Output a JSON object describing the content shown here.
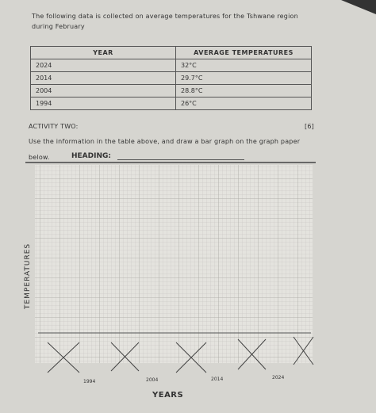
{
  "intro": "The following data is collected on average temperatures for the Tshwane region during February",
  "table": {
    "headers": [
      "YEAR",
      "AVERAGE TEMPERATURES"
    ],
    "rows": [
      [
        "2024",
        "32°C"
      ],
      [
        "2014",
        "29.7°C"
      ],
      [
        "2004",
        "28.8°C"
      ],
      [
        "1994",
        "26°C"
      ]
    ]
  },
  "activity": {
    "title": "ACTIVITY TWO:",
    "marks": "[6]",
    "instruction": "Use the information in the table above, and draw a bar graph on the graph paper below.",
    "heading_label": "HEADING:"
  },
  "graph": {
    "y_label": "TEMPERATURES",
    "x_label": "YEARS",
    "x_labels": [
      "1994",
      "2004",
      "2014",
      "2024"
    ]
  }
}
